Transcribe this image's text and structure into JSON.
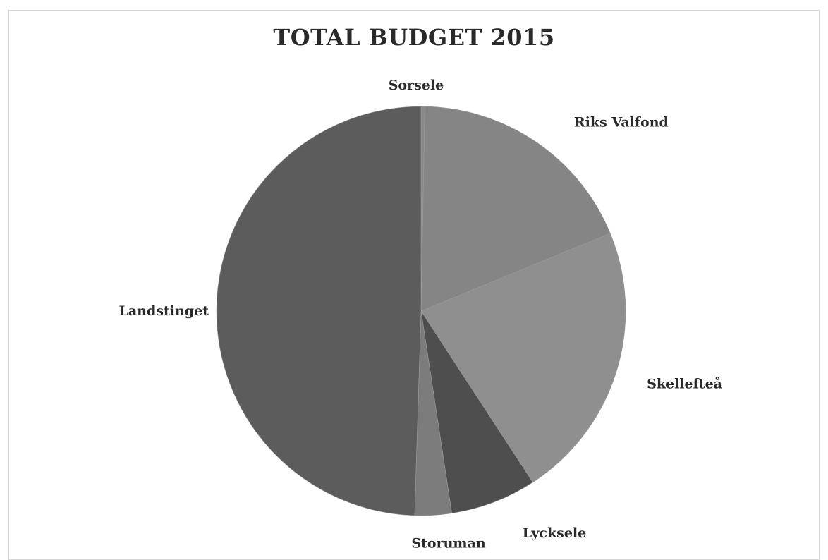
{
  "chart_data": {
    "type": "pie",
    "title": "TOTAL BUDGET 2015",
    "slices": [
      {
        "label": "Sorsele",
        "value": 0.3,
        "color": "#8a8a8a"
      },
      {
        "label": "Riks Valfond",
        "value": 18.5,
        "color": "#858585"
      },
      {
        "label": "Skellefteå",
        "value": 22.0,
        "color": "#8f8f8f"
      },
      {
        "label": "Lycksele",
        "value": 6.8,
        "color": "#4e4e4e"
      },
      {
        "label": "Storuman",
        "value": 2.9,
        "color": "#7c7c7c"
      },
      {
        "label": "Landstinget",
        "value": 49.5,
        "color": "#5c5c5c"
      }
    ],
    "start_angle_deg": 0,
    "direction": "clockwise",
    "legend": "none"
  }
}
